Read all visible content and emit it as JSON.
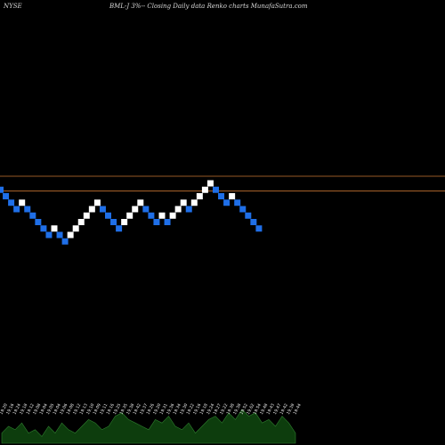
{
  "header": {
    "exchange": "NYSE",
    "description": "BML-J 3%-- Closing Daily data Renko charts MunafaSutra.com"
  },
  "colors": {
    "background": "#000000",
    "up_brick": "#ffffff",
    "down_brick": "#1f6fe8",
    "resistance_line": "#c87533",
    "volume_fill": "#0d3d0d",
    "volume_stroke": "#2e7d2e",
    "label_text": "#e8e8e8"
  },
  "chart_data": {
    "type": "renko",
    "brick_direction": [
      "down",
      "down",
      "down",
      "down",
      "up",
      "down",
      "down",
      "down",
      "down",
      "down",
      "up",
      "down",
      "down",
      "up",
      "up",
      "up",
      "up",
      "up",
      "up",
      "down",
      "down",
      "down",
      "down",
      "up",
      "up",
      "up",
      "up",
      "down",
      "down",
      "down",
      "up",
      "down",
      "up",
      "up",
      "up",
      "down",
      "up",
      "up",
      "up",
      "up",
      "down",
      "down",
      "down",
      "up",
      "down",
      "down",
      "down",
      "down",
      "down"
    ],
    "brick_level": [
      9,
      8,
      7,
      6,
      7,
      6,
      5,
      4,
      3,
      2,
      3,
      2,
      1,
      2,
      3,
      4,
      5,
      6,
      7,
      6,
      5,
      4,
      3,
      4,
      5,
      6,
      7,
      6,
      5,
      4,
      5,
      4,
      5,
      6,
      7,
      6,
      7,
      8,
      9,
      10,
      9,
      8,
      7,
      8,
      7,
      6,
      5,
      4,
      3
    ],
    "reference_lines": [
      11.1,
      8.8
    ],
    "volume_labels": [
      "19.20",
      "19.16",
      "19.24",
      "19.18",
      "19.12",
      "19.08",
      "19.04",
      "19.05",
      "19.04",
      "19.06",
      "19.08",
      "19.12",
      "19.13",
      "19.10",
      "19.09",
      "19.11",
      "19.16",
      "19.25",
      "19.35",
      "19.38",
      "19.42",
      "19.37",
      "19.26",
      "19.20",
      "19.31",
      "19.36",
      "19.34",
      "19.30",
      "19.22",
      "19.16",
      "19.18",
      "19.24",
      "19.27",
      "19.22",
      "19.38",
      "19.38",
      "19.52",
      "19.62",
      "19.54",
      "19.48",
      "19.43",
      "19.47",
      "19.42",
      "19.39",
      "19.44"
    ],
    "volume_values": [
      3,
      5,
      4,
      6,
      3,
      4,
      2,
      5,
      3,
      6,
      4,
      3,
      5,
      7,
      6,
      4,
      5,
      8,
      9,
      7,
      6,
      5,
      4,
      7,
      6,
      8,
      5,
      4,
      6,
      3,
      5,
      7,
      8,
      6,
      9,
      7,
      10,
      8,
      9,
      6,
      7,
      5,
      8,
      6,
      3
    ]
  }
}
